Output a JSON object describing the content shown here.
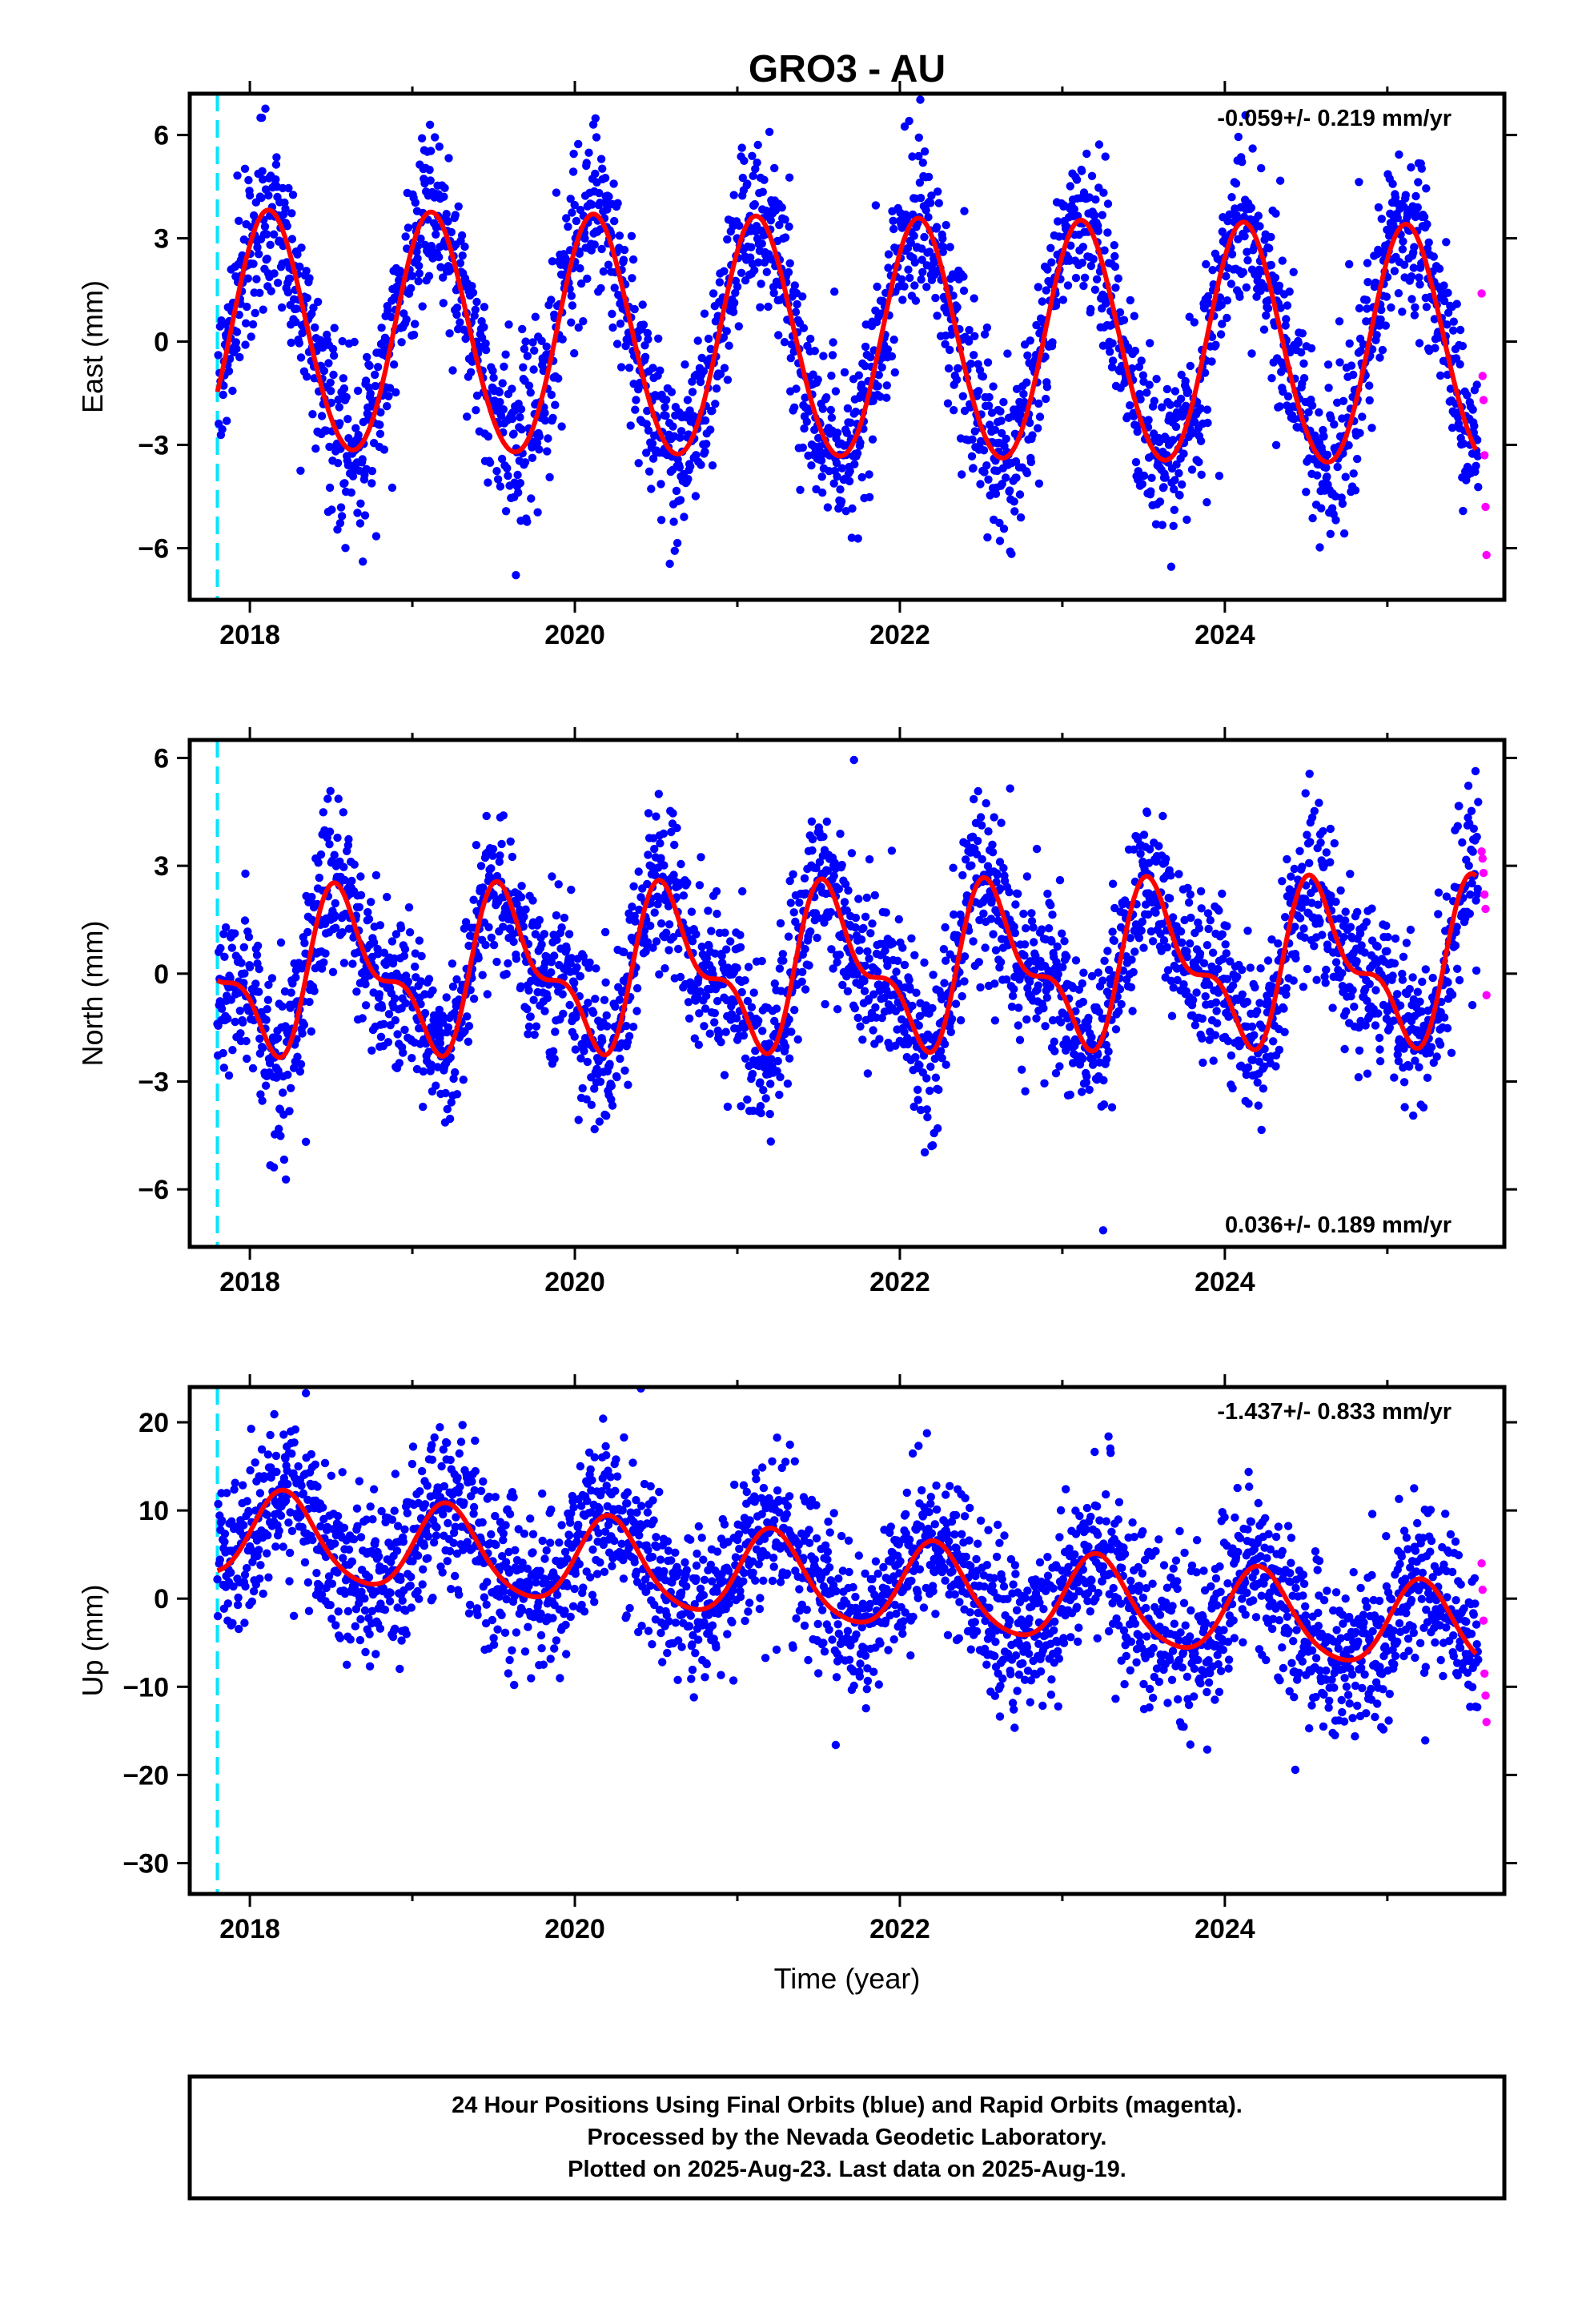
{
  "title": "GRO3 - AU",
  "footer": {
    "line1": "24 Hour Positions Using Final Orbits (blue) and Rapid Orbits (magenta).",
    "line2": "Processed by the Nevada Geodetic Laboratory.",
    "line3": "Plotted on 2025-Aug-23. Last data on 2025-Aug-19."
  },
  "colors": {
    "final_orbits": "#0000ff",
    "rapid_orbits": "#ff00ff",
    "model_fit": "#ff0000",
    "event_line": "#00e5ff",
    "frame": "#000000"
  },
  "chart_data": [
    {
      "type": "scatter",
      "name": "east",
      "ylabel": "East (mm)",
      "xlabel": "",
      "xlim": [
        2017.63,
        2025.72
      ],
      "ylim": [
        -7.5,
        7.2
      ],
      "xticks": [
        2018,
        2020,
        2022,
        2024
      ],
      "yticks": [
        -6,
        -3,
        0,
        3,
        6
      ],
      "rate_text": "-0.059+/- 0.219 mm/yr",
      "rate_position": "top-right",
      "event_line_x": 2017.8,
      "data_start": 2017.8,
      "data_end": 2025.55,
      "rapid_start": 2025.58,
      "final_end": 2025.56,
      "fit": {
        "offset": 0.0,
        "rate_mm_per_yr": -0.059,
        "annual_cos": 2.5,
        "annual_sin": 2.4,
        "semiannual_cos": 0.1,
        "semiannual_sin": 0.15
      },
      "noise_sd": 1.2,
      "sample_step_days": 1,
      "rapid_values": [
        1.4,
        -1.0,
        -1.7,
        -3.3,
        -4.8,
        -6.2
      ]
    },
    {
      "type": "scatter",
      "name": "north",
      "ylabel": "North (mm)",
      "xlabel": "",
      "xlim": [
        2017.63,
        2025.72
      ],
      "ylim": [
        -7.6,
        6.5
      ],
      "xticks": [
        2018,
        2020,
        2022,
        2024
      ],
      "yticks": [
        -6,
        -3,
        0,
        3,
        6
      ],
      "rate_text": "0.036+/- 0.189 mm/yr",
      "rate_position": "bottom-right",
      "event_line_x": 2017.8,
      "data_start": 2017.8,
      "data_end": 2025.55,
      "rapid_start": 2025.58,
      "final_end": 2025.56,
      "fit": {
        "offset": 0.1,
        "rate_mm_per_yr": 0.036,
        "annual_cos": -1.6,
        "annual_sin": -1.0,
        "semiannual_cos": 0.9,
        "semiannual_sin": -0.2
      },
      "noise_sd": 1.1,
      "sample_step_days": 1,
      "rapid_values": [
        3.4,
        3.2,
        2.8,
        2.2,
        1.8,
        -0.6
      ]
    },
    {
      "type": "scatter",
      "name": "up",
      "ylabel": "Up (mm)",
      "xlabel": "Time (year)",
      "xlim": [
        2017.63,
        2025.72
      ],
      "ylim": [
        -33.5,
        24
      ],
      "xticks": [
        2018,
        2020,
        2022,
        2024
      ],
      "yticks": [
        -30,
        -20,
        -10,
        0,
        10,
        20
      ],
      "rate_text": "-1.437+/- 0.833 mm/yr",
      "rate_position": "top-right",
      "event_line_x": 2017.8,
      "data_start": 2017.8,
      "data_end": 2025.55,
      "rapid_start": 2025.58,
      "final_end": 2025.56,
      "fit": {
        "offset": 2.0,
        "rate_mm_per_yr": -1.437,
        "annual_cos": 1.0,
        "annual_sin": 4.8,
        "semiannual_cos": -0.5,
        "semiannual_sin": 0.5
      },
      "noise_sd": 4.6,
      "sample_step_days": 1,
      "rapid_values": [
        4.0,
        1.0,
        -2.5,
        -8.5,
        -11.0,
        -14.0
      ]
    }
  ]
}
